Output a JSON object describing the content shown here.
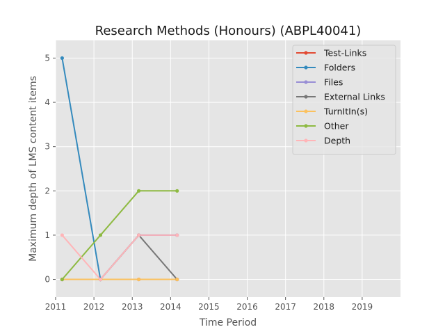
{
  "chart_data": {
    "type": "line",
    "title": "Research Methods (Honours) (ABPL40041)",
    "xlabel": "Time Period",
    "ylabel": "Maximum depth of LMS content items",
    "xlim": [
      2011,
      2020
    ],
    "ylim": [
      -0.4,
      5.4
    ],
    "xticks": [
      2011,
      2012,
      2013,
      2014,
      2015,
      2016,
      2017,
      2018,
      2019
    ],
    "yticks": [
      0,
      1,
      2,
      3,
      4,
      5
    ],
    "x": [
      2011.17,
      2012.17,
      2013.17,
      2014.17
    ],
    "grid": true,
    "legend_position": "top-right",
    "series": [
      {
        "name": "Test-Links",
        "color": "#E24A33",
        "values": [
          0,
          0,
          0,
          0
        ]
      },
      {
        "name": "Folders",
        "color": "#348ABD",
        "values": [
          5,
          0,
          1,
          1
        ]
      },
      {
        "name": "Files",
        "color": "#988ED5",
        "values": [
          0,
          0,
          1,
          1
        ]
      },
      {
        "name": "External Links",
        "color": "#777777",
        "values": [
          0,
          0,
          1,
          0
        ]
      },
      {
        "name": "TurnItIn(s)",
        "color": "#FBC15E",
        "values": [
          0,
          0,
          0,
          0
        ]
      },
      {
        "name": "Other",
        "color": "#8EBA42",
        "values": [
          0,
          1,
          2,
          2
        ]
      },
      {
        "name": "Depth",
        "color": "#FFB5B8",
        "values": [
          1,
          0,
          1,
          1
        ]
      }
    ]
  }
}
